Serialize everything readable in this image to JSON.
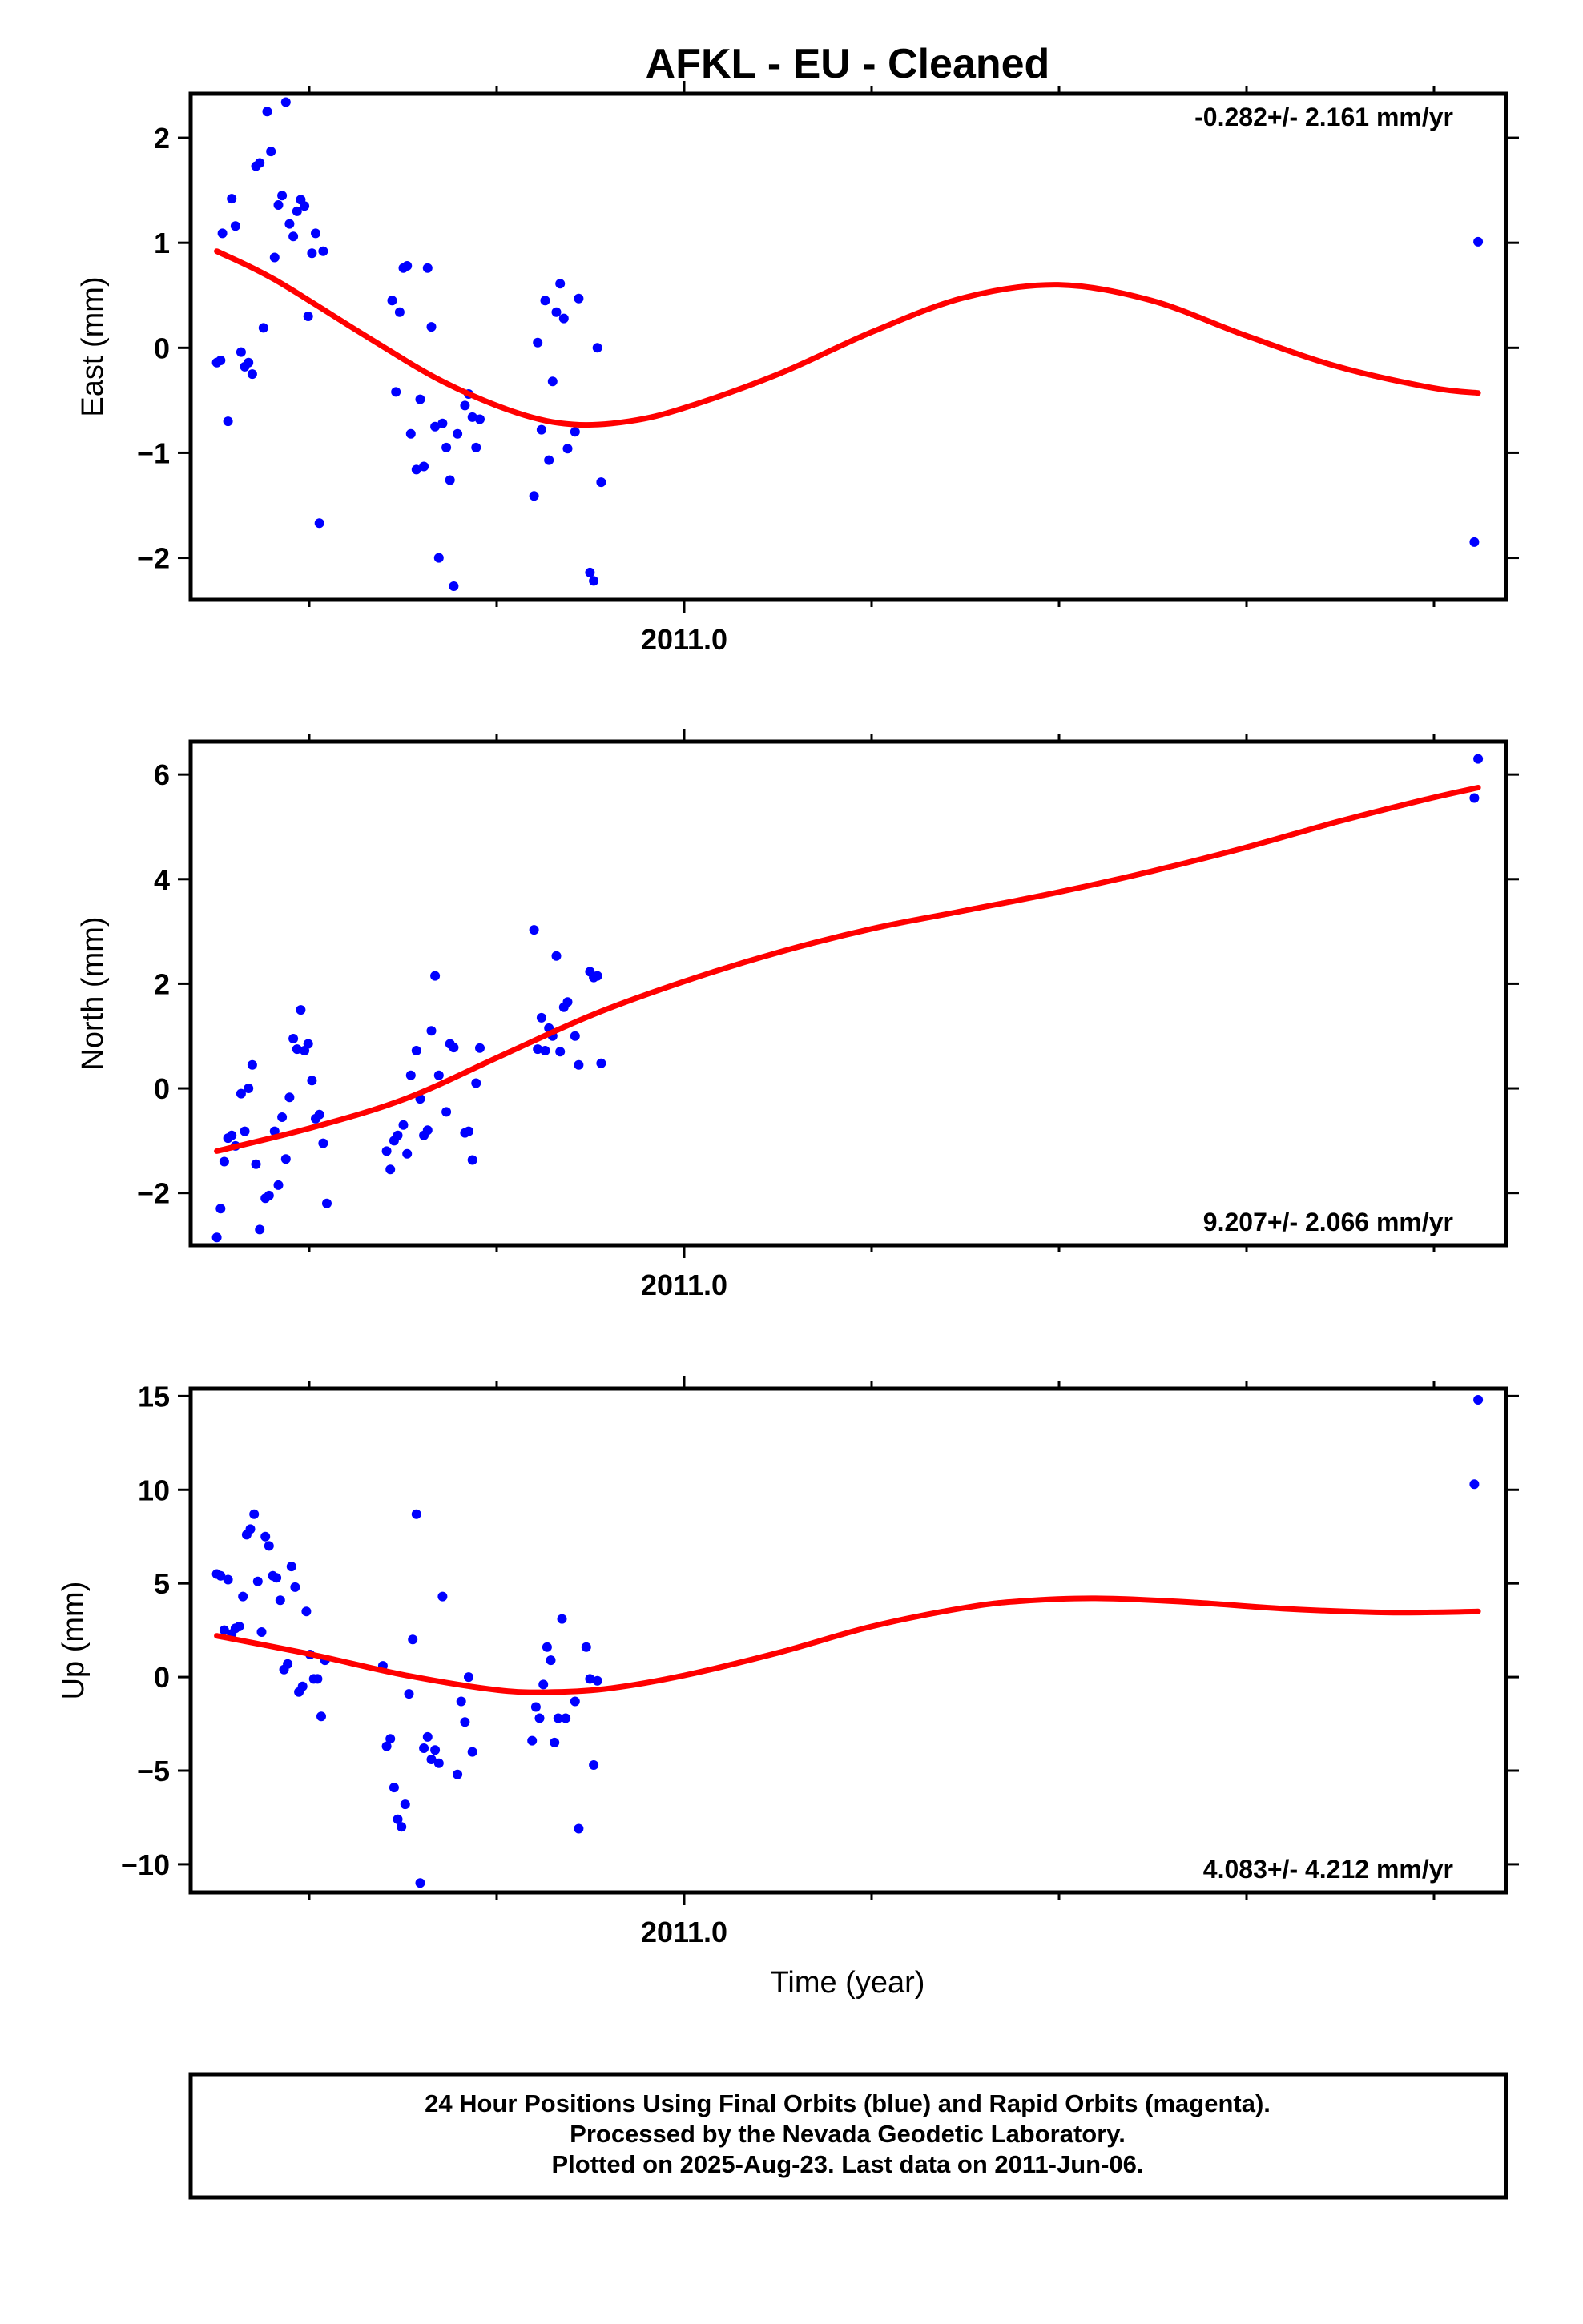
{
  "chart_data": {
    "title": "AFKL  - EU - Cleaned",
    "xlabel": "Time (year)",
    "x_tick_label": "2011.0",
    "colors": {
      "points": "#0000ff",
      "fit": "#ff0000"
    },
    "caption": [
      "24 Hour Positions Using Final Orbits (blue) and Rapid Orbits (magenta).",
      "Processed by the Nevada Geodetic Laboratory.",
      "Plotted on 2025-Aug-23. Last data on 2011-Jun-06."
    ],
    "panels": [
      {
        "type": "scatter",
        "ylabel": "East (mm)",
        "rate_label": "-0.282+/- 2.161 mm/yr",
        "yticks": [
          2,
          1,
          0,
          -1,
          -2
        ],
        "ytick_labels": [
          "2",
          "1",
          "0",
          "−1",
          "−2"
        ],
        "xlim": [
          2010.735,
          2011.44
        ],
        "ylim": [
          -2.4,
          2.42
        ],
        "points": [
          [
            2010.749,
            -0.14
          ],
          [
            2010.751,
            -0.12
          ],
          [
            2010.752,
            1.09
          ],
          [
            2010.755,
            -0.7
          ],
          [
            2010.757,
            1.42
          ],
          [
            2010.759,
            1.16
          ],
          [
            2010.762,
            -0.04
          ],
          [
            2010.764,
            -0.18
          ],
          [
            2010.766,
            -0.14
          ],
          [
            2010.768,
            -0.25
          ],
          [
            2010.77,
            1.73
          ],
          [
            2010.772,
            1.76
          ],
          [
            2010.774,
            0.19
          ],
          [
            2010.776,
            2.25
          ],
          [
            2010.778,
            1.87
          ],
          [
            2010.78,
            0.86
          ],
          [
            2010.782,
            1.36
          ],
          [
            2010.784,
            1.45
          ],
          [
            2010.786,
            2.34
          ],
          [
            2010.788,
            1.18
          ],
          [
            2010.79,
            1.06
          ],
          [
            2010.792,
            1.3
          ],
          [
            2010.794,
            1.41
          ],
          [
            2010.796,
            1.35
          ],
          [
            2010.798,
            0.3
          ],
          [
            2010.8,
            0.9
          ],
          [
            2010.802,
            1.09
          ],
          [
            2010.804,
            -1.67
          ],
          [
            2010.806,
            0.92
          ],
          [
            2010.843,
            0.45
          ],
          [
            2010.845,
            -0.42
          ],
          [
            2010.847,
            0.34
          ],
          [
            2010.849,
            0.76
          ],
          [
            2010.851,
            0.78
          ],
          [
            2010.853,
            -0.82
          ],
          [
            2010.856,
            -1.16
          ],
          [
            2010.858,
            -0.49
          ],
          [
            2010.86,
            -1.13
          ],
          [
            2010.862,
            0.76
          ],
          [
            2010.864,
            0.2
          ],
          [
            2010.866,
            -0.75
          ],
          [
            2010.868,
            -2.0
          ],
          [
            2010.87,
            -0.72
          ],
          [
            2010.872,
            -0.95
          ],
          [
            2010.874,
            -1.26
          ],
          [
            2010.876,
            -2.27
          ],
          [
            2010.878,
            -0.82
          ],
          [
            2010.882,
            -0.55
          ],
          [
            2010.884,
            -0.44
          ],
          [
            2010.886,
            -0.66
          ],
          [
            2010.888,
            -0.95
          ],
          [
            2010.89,
            -0.68
          ],
          [
            2010.919,
            -1.41
          ],
          [
            2010.921,
            0.05
          ],
          [
            2010.923,
            -0.78
          ],
          [
            2010.925,
            0.45
          ],
          [
            2010.927,
            -1.07
          ],
          [
            2010.929,
            -0.32
          ],
          [
            2010.931,
            0.34
          ],
          [
            2010.933,
            0.61
          ],
          [
            2010.935,
            0.28
          ],
          [
            2010.937,
            -0.96
          ],
          [
            2010.941,
            -0.8
          ],
          [
            2010.943,
            0.47
          ],
          [
            2010.949,
            -2.14
          ],
          [
            2010.951,
            -2.22
          ],
          [
            2010.953,
            0.0
          ],
          [
            2010.955,
            -1.28
          ],
          [
            2011.423,
            -1.85
          ],
          [
            2011.425,
            1.01
          ]
        ],
        "fit": [
          [
            2010.749,
            0.92
          ],
          [
            2010.78,
            0.65
          ],
          [
            2010.83,
            0.1
          ],
          [
            2010.87,
            -0.32
          ],
          [
            2010.91,
            -0.62
          ],
          [
            2010.94,
            -0.73
          ],
          [
            2010.97,
            -0.7
          ],
          [
            2011.0,
            -0.57
          ],
          [
            2011.05,
            -0.25
          ],
          [
            2011.1,
            0.15
          ],
          [
            2011.15,
            0.48
          ],
          [
            2011.2,
            0.6
          ],
          [
            2011.25,
            0.45
          ],
          [
            2011.3,
            0.12
          ],
          [
            2011.35,
            -0.18
          ],
          [
            2011.4,
            -0.38
          ],
          [
            2011.425,
            -0.43
          ]
        ]
      },
      {
        "type": "scatter",
        "ylabel": "North (mm)",
        "rate_label": "9.207+/- 2.066 mm/yr",
        "yticks": [
          6,
          4,
          2,
          0,
          -2
        ],
        "ytick_labels": [
          "6",
          "4",
          "2",
          "0",
          "−2"
        ],
        "xlim": [
          2010.735,
          2011.44
        ],
        "ylim": [
          -3.0,
          6.63
        ],
        "points": [
          [
            2010.749,
            -2.85
          ],
          [
            2010.751,
            -2.3
          ],
          [
            2010.753,
            -1.4
          ],
          [
            2010.755,
            -0.95
          ],
          [
            2010.757,
            -0.9
          ],
          [
            2010.759,
            -1.1
          ],
          [
            2010.762,
            -0.1
          ],
          [
            2010.764,
            -0.82
          ],
          [
            2010.766,
            0.0
          ],
          [
            2010.768,
            0.45
          ],
          [
            2010.77,
            -1.45
          ],
          [
            2010.772,
            -2.7
          ],
          [
            2010.775,
            -2.1
          ],
          [
            2010.777,
            -2.05
          ],
          [
            2010.78,
            -0.82
          ],
          [
            2010.782,
            -1.85
          ],
          [
            2010.784,
            -0.55
          ],
          [
            2010.786,
            -1.35
          ],
          [
            2010.788,
            -0.17
          ],
          [
            2010.79,
            0.95
          ],
          [
            2010.792,
            0.75
          ],
          [
            2010.794,
            1.5
          ],
          [
            2010.796,
            0.72
          ],
          [
            2010.798,
            0.85
          ],
          [
            2010.8,
            0.15
          ],
          [
            2010.802,
            -0.58
          ],
          [
            2010.804,
            -0.5
          ],
          [
            2010.806,
            -1.05
          ],
          [
            2010.808,
            -2.2
          ],
          [
            2010.84,
            -1.2
          ],
          [
            2010.842,
            -1.55
          ],
          [
            2010.844,
            -1.0
          ],
          [
            2010.846,
            -0.9
          ],
          [
            2010.849,
            -0.7
          ],
          [
            2010.851,
            -1.25
          ],
          [
            2010.853,
            0.25
          ],
          [
            2010.856,
            0.72
          ],
          [
            2010.858,
            -0.2
          ],
          [
            2010.86,
            -0.9
          ],
          [
            2010.862,
            -0.8
          ],
          [
            2010.864,
            1.1
          ],
          [
            2010.866,
            2.15
          ],
          [
            2010.868,
            0.25
          ],
          [
            2010.872,
            -0.45
          ],
          [
            2010.874,
            0.85
          ],
          [
            2010.876,
            0.78
          ],
          [
            2010.882,
            -0.85
          ],
          [
            2010.884,
            -0.82
          ],
          [
            2010.886,
            -1.37
          ],
          [
            2010.888,
            0.1
          ],
          [
            2010.89,
            0.77
          ],
          [
            2010.919,
            3.03
          ],
          [
            2010.921,
            0.75
          ],
          [
            2010.923,
            1.35
          ],
          [
            2010.925,
            0.72
          ],
          [
            2010.927,
            1.15
          ],
          [
            2010.929,
            1.0
          ],
          [
            2010.931,
            2.53
          ],
          [
            2010.933,
            0.7
          ],
          [
            2010.935,
            1.55
          ],
          [
            2010.937,
            1.65
          ],
          [
            2010.941,
            1.0
          ],
          [
            2010.943,
            0.45
          ],
          [
            2010.949,
            2.23
          ],
          [
            2010.951,
            2.12
          ],
          [
            2010.953,
            2.15
          ],
          [
            2010.955,
            0.48
          ],
          [
            2011.423,
            5.55
          ],
          [
            2011.425,
            6.3
          ]
        ],
        "fit": [
          [
            2010.749,
            -1.2
          ],
          [
            2010.8,
            -0.75
          ],
          [
            2010.85,
            -0.2
          ],
          [
            2010.9,
            0.6
          ],
          [
            2010.95,
            1.4
          ],
          [
            2011.0,
            2.05
          ],
          [
            2011.05,
            2.6
          ],
          [
            2011.1,
            3.05
          ],
          [
            2011.15,
            3.4
          ],
          [
            2011.2,
            3.75
          ],
          [
            2011.25,
            4.15
          ],
          [
            2011.3,
            4.6
          ],
          [
            2011.35,
            5.1
          ],
          [
            2011.4,
            5.55
          ],
          [
            2011.425,
            5.75
          ]
        ]
      },
      {
        "type": "scatter",
        "ylabel": "Up (mm)",
        "rate_label": "4.083+/- 4.212 mm/yr",
        "yticks": [
          15,
          10,
          5,
          0,
          -5,
          -10
        ],
        "ytick_labels": [
          "15",
          "10",
          "5",
          "0",
          "−5",
          "−10"
        ],
        "xlim": [
          2010.735,
          2011.44
        ],
        "ylim": [
          -11.5,
          15.4
        ],
        "points": [
          [
            2010.749,
            5.5
          ],
          [
            2010.751,
            5.4
          ],
          [
            2010.753,
            2.5
          ],
          [
            2010.755,
            5.2
          ],
          [
            2010.757,
            2.3
          ],
          [
            2010.759,
            2.6
          ],
          [
            2010.761,
            2.7
          ],
          [
            2010.763,
            4.3
          ],
          [
            2010.765,
            7.6
          ],
          [
            2010.767,
            7.9
          ],
          [
            2010.769,
            8.7
          ],
          [
            2010.771,
            5.1
          ],
          [
            2010.773,
            2.4
          ],
          [
            2010.775,
            7.5
          ],
          [
            2010.777,
            7.0
          ],
          [
            2010.779,
            5.4
          ],
          [
            2010.781,
            5.3
          ],
          [
            2010.783,
            4.1
          ],
          [
            2010.785,
            0.4
          ],
          [
            2010.787,
            0.7
          ],
          [
            2010.789,
            5.9
          ],
          [
            2010.791,
            4.8
          ],
          [
            2010.793,
            -0.8
          ],
          [
            2010.795,
            -0.5
          ],
          [
            2010.797,
            3.5
          ],
          [
            2010.799,
            1.2
          ],
          [
            2010.801,
            -0.1
          ],
          [
            2010.803,
            -0.1
          ],
          [
            2010.805,
            -2.1
          ],
          [
            2010.807,
            0.9
          ],
          [
            2010.838,
            0.6
          ],
          [
            2010.84,
            -3.7
          ],
          [
            2010.842,
            -3.3
          ],
          [
            2010.844,
            -5.9
          ],
          [
            2010.846,
            -7.6
          ],
          [
            2010.848,
            -8.0
          ],
          [
            2010.85,
            -6.8
          ],
          [
            2010.852,
            -0.9
          ],
          [
            2010.854,
            2.0
          ],
          [
            2010.856,
            8.7
          ],
          [
            2010.858,
            -11.0
          ],
          [
            2010.86,
            -3.8
          ],
          [
            2010.862,
            -3.2
          ],
          [
            2010.864,
            -4.4
          ],
          [
            2010.866,
            -3.9
          ],
          [
            2010.868,
            -4.6
          ],
          [
            2010.87,
            4.3
          ],
          [
            2010.878,
            -5.2
          ],
          [
            2010.88,
            -1.3
          ],
          [
            2010.882,
            -2.4
          ],
          [
            2010.884,
            0.0
          ],
          [
            2010.886,
            -4.0
          ],
          [
            2010.918,
            -3.4
          ],
          [
            2010.92,
            -1.6
          ],
          [
            2010.922,
            -2.2
          ],
          [
            2010.924,
            -0.4
          ],
          [
            2010.926,
            1.6
          ],
          [
            2010.928,
            0.9
          ],
          [
            2010.93,
            -3.5
          ],
          [
            2010.932,
            -2.2
          ],
          [
            2010.934,
            3.1
          ],
          [
            2010.936,
            -2.2
          ],
          [
            2010.941,
            -1.3
          ],
          [
            2010.943,
            -8.1
          ],
          [
            2010.947,
            1.6
          ],
          [
            2010.949,
            -0.1
          ],
          [
            2010.951,
            -4.7
          ],
          [
            2010.953,
            -0.2
          ],
          [
            2011.423,
            10.3
          ],
          [
            2011.425,
            14.8
          ]
        ],
        "fit": [
          [
            2010.749,
            2.2
          ],
          [
            2010.8,
            1.2
          ],
          [
            2010.85,
            0.1
          ],
          [
            2010.9,
            -0.7
          ],
          [
            2010.93,
            -0.8
          ],
          [
            2010.96,
            -0.6
          ],
          [
            2011.0,
            0.1
          ],
          [
            2011.05,
            1.3
          ],
          [
            2011.1,
            2.7
          ],
          [
            2011.15,
            3.7
          ],
          [
            2011.18,
            4.05
          ],
          [
            2011.22,
            4.2
          ],
          [
            2011.27,
            4.0
          ],
          [
            2011.32,
            3.65
          ],
          [
            2011.37,
            3.45
          ],
          [
            2011.4,
            3.45
          ],
          [
            2011.425,
            3.5
          ]
        ]
      }
    ]
  }
}
